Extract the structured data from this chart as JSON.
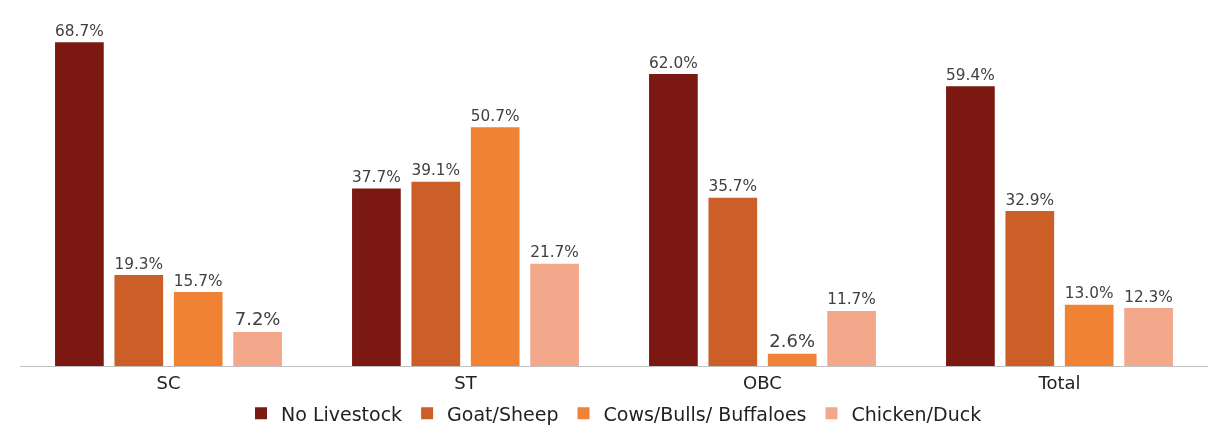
{
  "chart_data": {
    "type": "bar",
    "categories": [
      "SC",
      "ST",
      "OBC",
      "Total"
    ],
    "series": [
      {
        "name": "No Livestock",
        "color": "#7b1812",
        "values": [
          68.7,
          37.7,
          62.0,
          59.4
        ],
        "value_labels": [
          "68.7%",
          "37.7%",
          "62.0%",
          "59.4%"
        ]
      },
      {
        "name": "Goat/Sheep",
        "color": "#cc5f28",
        "values": [
          19.3,
          39.1,
          35.7,
          32.9
        ],
        "value_labels": [
          "19.3%",
          "39.1%",
          "35.7%",
          "32.9%"
        ]
      },
      {
        "name": "Cows/Bulls/ Buffaloes",
        "color": "#ef8234",
        "values": [
          15.7,
          50.7,
          2.6,
          13.0
        ],
        "value_labels": [
          "15.7%",
          "50.7%",
          "2.6%",
          "13.0%"
        ]
      },
      {
        "name": "Chicken/Duck",
        "color": "#f3a88b",
        "values": [
          7.2,
          21.7,
          11.7,
          12.3
        ],
        "value_labels": [
          "7.2%",
          "21.7%",
          "11.7%",
          "12.3%"
        ]
      }
    ],
    "legend": "bottom",
    "grid": false
  }
}
